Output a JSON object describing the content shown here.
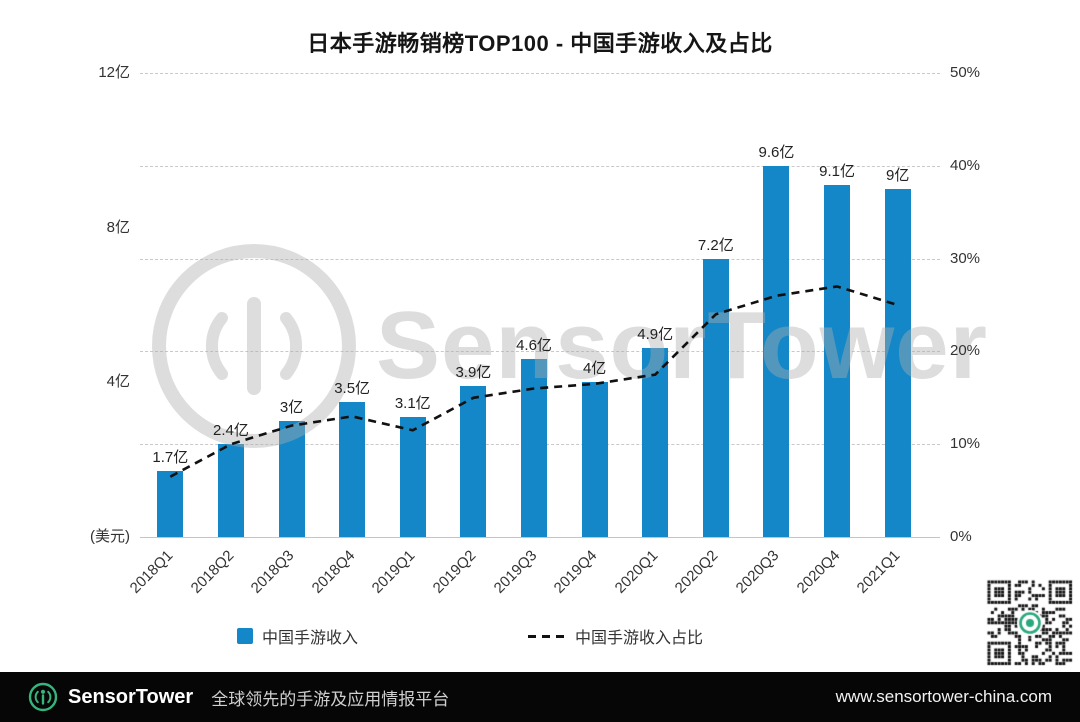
{
  "title": "日本手游畅销榜TOP100 - 中国手游收入及占比",
  "watermark": {
    "text": "SensorTower"
  },
  "legend": {
    "bar_label": "中国手游收入",
    "line_label": "中国手游收入占比"
  },
  "footer": {
    "brand": "SensorTower",
    "tagline": "全球领先的手游及应用情报平台",
    "url": "www.sensortower-china.com",
    "brand_green": "#35b57c",
    "background": "#060606"
  },
  "qr": {
    "accent": "#2aa87c"
  },
  "chart_data": {
    "type": "bar",
    "combo": "bar+line",
    "title": "日本手游畅销榜TOP100 - 中国手游收入及占比",
    "categories": [
      "2018Q1",
      "2018Q2",
      "2018Q3",
      "2018Q4",
      "2019Q1",
      "2019Q2",
      "2019Q3",
      "2019Q4",
      "2020Q1",
      "2020Q2",
      "2020Q3",
      "2020Q4",
      "2021Q1"
    ],
    "series": [
      {
        "name": "中国手游收入",
        "type": "bar",
        "axis": "left",
        "unit": "亿美元",
        "color": "#1487c8",
        "values": [
          1.7,
          2.4,
          3,
          3.5,
          3.1,
          3.9,
          4.6,
          4,
          4.9,
          7.2,
          9.6,
          9.1,
          9
        ],
        "labels": [
          "1.7亿",
          "2.4亿",
          "3亿",
          "3.5亿",
          "3.1亿",
          "3.9亿",
          "4.6亿",
          "4亿",
          "4.9亿",
          "7.2亿",
          "9.6亿",
          "9.1亿",
          "9亿"
        ]
      },
      {
        "name": "中国手游收入占比",
        "type": "line",
        "style": "dashed",
        "axis": "right",
        "unit": "%",
        "color": "#111111",
        "values": [
          6.5,
          10,
          12,
          13,
          11.5,
          15,
          16,
          16.5,
          17.5,
          24,
          26,
          27,
          25
        ]
      }
    ],
    "left_axis": {
      "max": 12,
      "unit_label": "(美元)",
      "ticks": [
        {
          "label": "12亿",
          "value": 12
        },
        {
          "label": "8亿",
          "value": 8
        },
        {
          "label": "4亿",
          "value": 4
        }
      ]
    },
    "right_axis": {
      "max": 50,
      "ticks": [
        {
          "label": "50%",
          "value": 50
        },
        {
          "label": "40%",
          "value": 40
        },
        {
          "label": "30%",
          "value": 30
        },
        {
          "label": "20%",
          "value": 20
        },
        {
          "label": "10%",
          "value": 10
        },
        {
          "label": "0%",
          "value": 0
        }
      ]
    },
    "grid": {
      "dashed": true,
      "color": "#c9c9c9"
    },
    "legend_position": "bottom"
  }
}
